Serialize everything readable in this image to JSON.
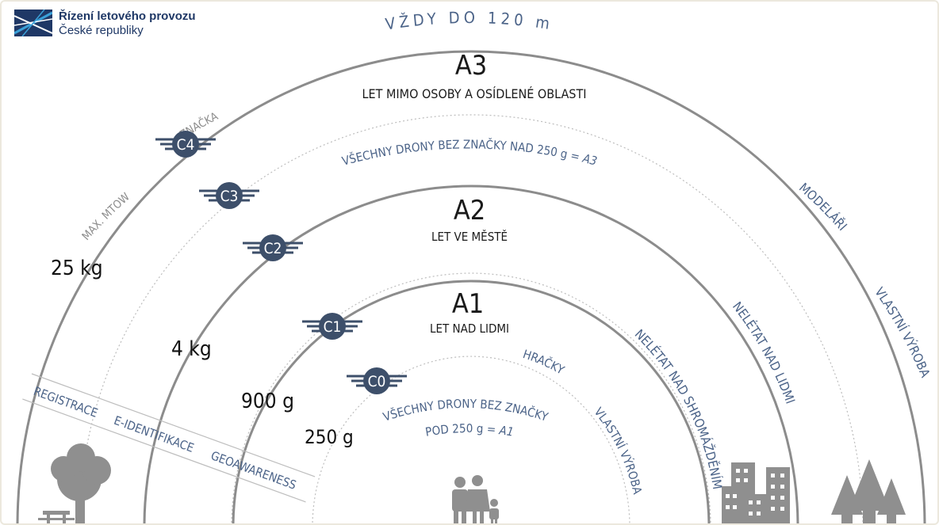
{
  "brand": {
    "name_line1": "Řízení letového provozu",
    "name_line2": "České republiky",
    "colors": {
      "navy": "#1f3866",
      "accent": "#3aa0d8"
    }
  },
  "diagram": {
    "ceiling": "VŽDY DO 120 m",
    "categories": {
      "a3": {
        "title": "A3",
        "subtitle": "LET MIMO OSOBY A OSÍDLENÉ OBLASTI"
      },
      "a2": {
        "title": "A2",
        "subtitle": "LET VE MĚSTĚ"
      },
      "a1": {
        "title": "A1",
        "subtitle": "LET NAD LIDMI"
      }
    },
    "note_a3": "VŠECHNY DRONY BEZ ZNAČKY NAD 250 g = ",
    "note_a3_value": "A3",
    "note_a1_line1": "VŠECHNY DRONY BEZ ZNAČKY",
    "note_a1_line2": "POD 250 g = ",
    "note_a1_value": "A1",
    "labels": {
      "znacka": "ZNAČKA",
      "max_mtow": "MAX. MTOW",
      "modelari": "MODELÁŘI",
      "vlastni_vyroba": "VLASTNÍ VÝROBA",
      "neletat_nad_lidmi": "NELÉTAT NAD LIDMI",
      "neletat_nad_shromazdenim": "NELÉTAT NAD SHROMÁŽDĚNÍM",
      "hracky": "HRAČKY",
      "vlastni_vyroba_inner": "VLASTNÍ VÝROBA"
    },
    "badges": [
      "C4",
      "C3",
      "C2",
      "C1",
      "C0"
    ],
    "weights": [
      "25 kg",
      "4 kg",
      "900 g",
      "250 g"
    ],
    "requirements": [
      "REGISTRACE",
      "E-IDENTIFIKACE",
      "GEOAWARENESS"
    ],
    "colors": {
      "arc": "#8c8c8c",
      "dotted": "#bdbdbd",
      "badge": "#3d4f6a",
      "label_blue": "#4b6388",
      "text_dark": "#1a1a1a",
      "icon_gray": "#8f8f8f"
    }
  }
}
